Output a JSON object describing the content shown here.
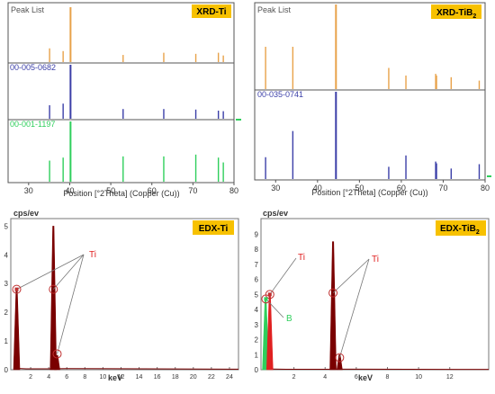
{
  "colors": {
    "orange": "#e8a24a",
    "blue": "#3b3fa8",
    "green": "#2fcf5c",
    "dark_red": "#7a0000",
    "red": "#e02020",
    "badge": "#f7c100",
    "frame": "#555555",
    "axis": "#333333"
  },
  "chart_data": [
    {
      "type": "bar",
      "panel": "xrd-ti",
      "title": "Peak List",
      "badge": "XRD-Ti",
      "xlabel": "Position [°2Theta] (Copper (Cu))",
      "xlim": [
        25,
        80
      ],
      "xticks": [
        30,
        40,
        50,
        60,
        70,
        80
      ],
      "series": [
        {
          "name": "Peak List",
          "color_key": "orange",
          "x": [
            35.1,
            38.4,
            40.2,
            53.0,
            62.9,
            70.7,
            76.2,
            77.4
          ],
          "values": [
            0.25,
            0.2,
            1.0,
            0.13,
            0.17,
            0.15,
            0.17,
            0.12
          ]
        },
        {
          "name": "00-005-0682",
          "color_key": "blue",
          "x": [
            35.1,
            38.4,
            40.2,
            53.0,
            62.9,
            70.7,
            76.2,
            77.4
          ],
          "values": [
            0.25,
            0.28,
            1.0,
            0.18,
            0.18,
            0.17,
            0.15,
            0.14
          ]
        },
        {
          "name": "00-001-1197",
          "color_key": "green",
          "x": [
            35.1,
            38.4,
            40.2,
            53.0,
            62.9,
            70.7,
            76.2,
            77.4
          ],
          "values": [
            0.35,
            0.4,
            1.0,
            0.42,
            0.42,
            0.45,
            0.4,
            0.32
          ]
        }
      ]
    },
    {
      "type": "bar",
      "panel": "xrd-tib2",
      "title": "Peak List",
      "badge": "XRD-TiB",
      "badge_sub": "2",
      "xlabel": "Position [°2Theta] (Copper (Cu))",
      "xlim": [
        25,
        80
      ],
      "xticks": [
        30,
        40,
        50,
        60,
        70,
        80
      ],
      "series": [
        {
          "name": "Peak List",
          "color_key": "orange",
          "x": [
            27.6,
            34.1,
            44.4,
            57.0,
            61.1,
            68.2,
            68.4,
            71.9,
            78.6
          ],
          "values": [
            0.5,
            0.5,
            1.0,
            0.25,
            0.16,
            0.18,
            0.16,
            0.14,
            0.1
          ]
        },
        {
          "name": "00-035-0741",
          "color_key": "blue",
          "x": [
            27.6,
            34.1,
            44.4,
            57.0,
            61.1,
            68.2,
            68.4,
            71.9,
            78.6
          ],
          "values": [
            0.25,
            0.55,
            1.0,
            0.14,
            0.27,
            0.2,
            0.18,
            0.12,
            0.17
          ]
        }
      ]
    },
    {
      "type": "area",
      "panel": "edx-ti",
      "title": "EDX-Ti",
      "ylabel": "cps/ev",
      "xlabel": "keV",
      "xlim": [
        0,
        25
      ],
      "ylim": [
        0,
        5.2
      ],
      "xticks": [
        2,
        4,
        6,
        8,
        10,
        12,
        14,
        16,
        18,
        20,
        22,
        24
      ],
      "yticks": [
        0,
        1,
        2,
        3,
        4,
        5
      ],
      "annotation": "Ti",
      "peaks": [
        {
          "x": 0.45,
          "y": 2.8
        },
        {
          "x": 4.51,
          "y": 5.0
        },
        {
          "x": 4.93,
          "y": 0.5
        }
      ],
      "markers": [
        {
          "x": 0.45,
          "y": 2.8
        },
        {
          "x": 4.51,
          "y": 2.8
        },
        {
          "x": 4.93,
          "y": 0.55
        }
      ]
    },
    {
      "type": "area",
      "panel": "edx-tib2",
      "title": "EDX-TiB",
      "title_sub": "2",
      "ylabel": "cps/ev",
      "xlabel": "keV",
      "xlim": [
        0,
        14.5
      ],
      "ylim": [
        0,
        9.5
      ],
      "xticks": [
        2,
        4,
        6,
        8,
        10,
        12
      ],
      "yticks": [
        0,
        1,
        2,
        3,
        4,
        5,
        6,
        7,
        8,
        9
      ],
      "annotation_ti": "Ti",
      "annotation_b": "B",
      "peaks": [
        {
          "x": 0.18,
          "y": 4.7,
          "color_key": "green"
        },
        {
          "x": 0.45,
          "y": 5.0,
          "color_key": "red"
        },
        {
          "x": 4.51,
          "y": 8.5,
          "color_key": "dark_red"
        },
        {
          "x": 4.93,
          "y": 1.0,
          "color_key": "dark_red"
        }
      ],
      "markers": [
        {
          "x": 0.45,
          "y": 5.0
        },
        {
          "x": 0.2,
          "y": 4.7
        },
        {
          "x": 4.51,
          "y": 5.1
        },
        {
          "x": 4.93,
          "y": 0.8
        }
      ]
    }
  ]
}
